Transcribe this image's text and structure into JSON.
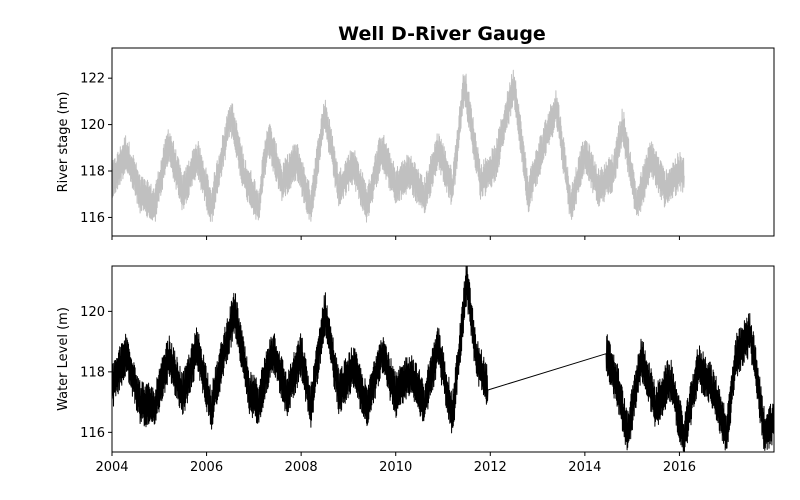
{
  "chart_data": [
    {
      "type": "line",
      "title": "Well D-River Gauge",
      "xlabel": "",
      "ylabel": "River stage (m)",
      "xlim": [
        2004.0,
        2018.0
      ],
      "ylim": [
        115.2,
        123.3
      ],
      "x_ticks": [
        2004,
        2006,
        2008,
        2010,
        2012,
        2014,
        2016
      ],
      "x_tick_labels_shown": false,
      "y_ticks": [
        116,
        118,
        120,
        122
      ],
      "grid": false,
      "series": [
        {
          "color": "#c0c0c0",
          "x": [
            2004.0,
            2004.3,
            2004.6,
            2004.9,
            2005.2,
            2005.5,
            2005.8,
            2006.1,
            2006.4,
            2006.5,
            2006.8,
            2007.1,
            2007.3,
            2007.6,
            2007.9,
            2008.2,
            2008.5,
            2008.8,
            2009.1,
            2009.4,
            2009.7,
            2010.0,
            2010.3,
            2010.6,
            2010.9,
            2011.2,
            2011.45,
            2011.8,
            2012.1,
            2012.5,
            2012.8,
            2013.1,
            2013.4,
            2013.7,
            2014.0,
            2014.3,
            2014.6,
            2014.8,
            2015.1,
            2015.4,
            2015.7,
            2016.0,
            2016.1
          ],
          "y": [
            117.5,
            118.8,
            117.0,
            116.5,
            119.2,
            117.0,
            118.6,
            116.5,
            119.3,
            120.5,
            117.8,
            116.5,
            119.5,
            117.5,
            118.5,
            116.5,
            120.5,
            117.2,
            118.3,
            116.5,
            119.0,
            117.3,
            118.0,
            116.8,
            119.0,
            117.2,
            121.8,
            117.5,
            118.3,
            121.8,
            117.0,
            119.0,
            120.8,
            116.5,
            118.8,
            117.2,
            118.0,
            120.0,
            116.5,
            118.6,
            117.2,
            118.0,
            117.8
          ]
        }
      ]
    },
    {
      "type": "line",
      "title": "",
      "xlabel": "",
      "ylabel": "Water Level (m)",
      "xlim": [
        2004.0,
        2018.0
      ],
      "ylim": [
        115.35,
        121.5
      ],
      "x_ticks": [
        2004,
        2006,
        2008,
        2010,
        2012,
        2014,
        2016
      ],
      "y_ticks": [
        116,
        118,
        120
      ],
      "grid": false,
      "series": [
        {
          "color": "#000000",
          "x": [
            2004.0,
            2004.3,
            2004.6,
            2004.9,
            2005.2,
            2005.5,
            2005.8,
            2006.1,
            2006.4,
            2006.6,
            2006.9,
            2007.1,
            2007.4,
            2007.7,
            2008.0,
            2008.2,
            2008.5,
            2008.8,
            2009.1,
            2009.4,
            2009.7,
            2010.0,
            2010.3,
            2010.6,
            2010.9,
            2011.2,
            2011.5,
            2011.7,
            2011.95,
            2014.45,
            2014.7,
            2014.9,
            2015.2,
            2015.5,
            2015.8,
            2016.1,
            2016.4,
            2016.7,
            2017.0,
            2017.2,
            2017.5,
            2017.8,
            2018.0
          ],
          "y": [
            117.5,
            118.6,
            117.0,
            116.8,
            118.5,
            117.2,
            118.8,
            116.8,
            118.9,
            120.0,
            117.3,
            117.0,
            118.8,
            117.2,
            118.6,
            116.8,
            120.0,
            117.3,
            118.2,
            116.8,
            118.7,
            117.2,
            118.0,
            117.0,
            118.8,
            116.5,
            121.0,
            118.5,
            117.4,
            118.6,
            117.5,
            115.9,
            118.5,
            116.8,
            117.8,
            115.8,
            118.2,
            117.5,
            116.0,
            118.5,
            119.3,
            116.0,
            116.4
          ]
        }
      ]
    }
  ]
}
